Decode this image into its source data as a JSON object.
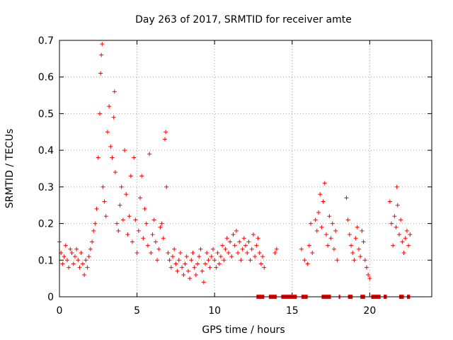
{
  "chart_data": {
    "type": "scatter",
    "title": "Day 263 of 2017, SRMTID for receiver amte",
    "xlabel": "GPS time / hours",
    "ylabel": "SRMTID / TECUs",
    "xlim": [
      0,
      24
    ],
    "ylim": [
      0,
      0.7
    ],
    "xticks": [
      0,
      5,
      10,
      15,
      20
    ],
    "yticks": [
      0,
      0.1,
      0.2,
      0.3,
      0.4,
      0.5,
      0.6,
      0.7
    ],
    "xtick_labels": [
      "0",
      "5",
      "10",
      "15",
      "20"
    ],
    "ytick_labels": [
      "0",
      "0.1",
      "0.2",
      "0.3",
      "0.4",
      "0.5",
      "0.6",
      "0.7"
    ],
    "grid": true,
    "marker": "+",
    "color": "#ff0000",
    "series": [
      {
        "name": "SRMTID",
        "points": [
          [
            0.0,
            0.15
          ],
          [
            0.1,
            0.12
          ],
          [
            0.2,
            0.09
          ],
          [
            0.3,
            0.11
          ],
          [
            0.4,
            0.14
          ],
          [
            0.5,
            0.1
          ],
          [
            0.6,
            0.08
          ],
          [
            0.7,
            0.13
          ],
          [
            0.8,
            0.12
          ],
          [
            0.9,
            0.09
          ],
          [
            1.0,
            0.11
          ],
          [
            1.1,
            0.13
          ],
          [
            1.2,
            0.1
          ],
          [
            1.3,
            0.08
          ],
          [
            1.4,
            0.12
          ],
          [
            1.5,
            0.09
          ],
          [
            1.6,
            0.06
          ],
          [
            1.7,
            0.1
          ],
          [
            1.8,
            0.08
          ],
          [
            1.9,
            0.11
          ],
          [
            2.0,
            0.13
          ],
          [
            2.1,
            0.15
          ],
          [
            2.2,
            0.18
          ],
          [
            2.3,
            0.2
          ],
          [
            2.4,
            0.24
          ],
          [
            2.5,
            0.38
          ],
          [
            2.6,
            0.5
          ],
          [
            2.65,
            0.61
          ],
          [
            2.7,
            0.66
          ],
          [
            2.75,
            0.69
          ],
          [
            2.8,
            0.3
          ],
          [
            2.9,
            0.26
          ],
          [
            3.0,
            0.22
          ],
          [
            3.1,
            0.45
          ],
          [
            3.2,
            0.52
          ],
          [
            3.3,
            0.41
          ],
          [
            3.4,
            0.38
          ],
          [
            3.5,
            0.49
          ],
          [
            3.55,
            0.56
          ],
          [
            3.6,
            0.34
          ],
          [
            3.7,
            0.2
          ],
          [
            3.8,
            0.18
          ],
          [
            3.9,
            0.25
          ],
          [
            4.0,
            0.3
          ],
          [
            4.1,
            0.21
          ],
          [
            4.2,
            0.4
          ],
          [
            4.3,
            0.28
          ],
          [
            4.4,
            0.17
          ],
          [
            4.5,
            0.22
          ],
          [
            4.6,
            0.33
          ],
          [
            4.7,
            0.15
          ],
          [
            4.8,
            0.38
          ],
          [
            4.9,
            0.21
          ],
          [
            5.0,
            0.12
          ],
          [
            5.1,
            0.18
          ],
          [
            5.2,
            0.27
          ],
          [
            5.3,
            0.33
          ],
          [
            5.4,
            0.16
          ],
          [
            5.5,
            0.24
          ],
          [
            5.6,
            0.2
          ],
          [
            5.7,
            0.14
          ],
          [
            5.8,
            0.39
          ],
          [
            5.9,
            0.12
          ],
          [
            6.0,
            0.17
          ],
          [
            6.1,
            0.21
          ],
          [
            6.2,
            0.15
          ],
          [
            6.3,
            0.1
          ],
          [
            6.4,
            0.13
          ],
          [
            6.5,
            0.19
          ],
          [
            6.6,
            0.2
          ],
          [
            6.7,
            0.16
          ],
          [
            6.8,
            0.43
          ],
          [
            6.85,
            0.45
          ],
          [
            6.9,
            0.3
          ],
          [
            7.0,
            0.12
          ],
          [
            7.1,
            0.1
          ],
          [
            7.2,
            0.08
          ],
          [
            7.3,
            0.11
          ],
          [
            7.4,
            0.13
          ],
          [
            7.5,
            0.09
          ],
          [
            7.6,
            0.07
          ],
          [
            7.7,
            0.1
          ],
          [
            7.8,
            0.12
          ],
          [
            7.9,
            0.08
          ],
          [
            8.0,
            0.06
          ],
          [
            8.1,
            0.09
          ],
          [
            8.2,
            0.11
          ],
          [
            8.3,
            0.07
          ],
          [
            8.4,
            0.05
          ],
          [
            8.5,
            0.1
          ],
          [
            8.6,
            0.12
          ],
          [
            8.7,
            0.08
          ],
          [
            8.8,
            0.06
          ],
          [
            8.9,
            0.09
          ],
          [
            9.0,
            0.11
          ],
          [
            9.1,
            0.13
          ],
          [
            9.2,
            0.07
          ],
          [
            9.3,
            0.04
          ],
          [
            9.4,
            0.09
          ],
          [
            9.5,
            0.12
          ],
          [
            9.6,
            0.1
          ],
          [
            9.7,
            0.08
          ],
          [
            9.8,
            0.11
          ],
          [
            9.9,
            0.13
          ],
          [
            10.0,
            0.1
          ],
          [
            10.1,
            0.08
          ],
          [
            10.2,
            0.12
          ],
          [
            10.3,
            0.09
          ],
          [
            10.4,
            0.11
          ],
          [
            10.5,
            0.14
          ],
          [
            10.6,
            0.1
          ],
          [
            10.7,
            0.13
          ],
          [
            10.8,
            0.16
          ],
          [
            10.9,
            0.12
          ],
          [
            11.0,
            0.15
          ],
          [
            11.1,
            0.11
          ],
          [
            11.2,
            0.17
          ],
          [
            11.3,
            0.14
          ],
          [
            11.4,
            0.18
          ],
          [
            11.5,
            0.12
          ],
          [
            11.6,
            0.15
          ],
          [
            11.7,
            0.1
          ],
          [
            11.8,
            0.13
          ],
          [
            11.9,
            0.16
          ],
          [
            12.0,
            0.14
          ],
          [
            12.1,
            0.12
          ],
          [
            12.2,
            0.15
          ],
          [
            12.3,
            0.1
          ],
          [
            12.4,
            0.13
          ],
          [
            12.5,
            0.17
          ],
          [
            12.6,
            0.11
          ],
          [
            12.7,
            0.14
          ],
          [
            12.8,
            0.16
          ],
          [
            12.9,
            0.12
          ],
          [
            13.0,
            0.09
          ],
          [
            13.1,
            0.11
          ],
          [
            13.2,
            0.08
          ],
          [
            13.9,
            0.12
          ],
          [
            14.0,
            0.13
          ],
          [
            15.6,
            0.13
          ],
          [
            15.8,
            0.1
          ],
          [
            16.0,
            0.09
          ],
          [
            16.1,
            0.14
          ],
          [
            16.2,
            0.2
          ],
          [
            16.3,
            0.12
          ],
          [
            16.5,
            0.21
          ],
          [
            16.6,
            0.18
          ],
          [
            16.7,
            0.23
          ],
          [
            16.8,
            0.28
          ],
          [
            16.9,
            0.19
          ],
          [
            17.0,
            0.26
          ],
          [
            17.1,
            0.31
          ],
          [
            17.2,
            0.17
          ],
          [
            17.3,
            0.14
          ],
          [
            17.4,
            0.22
          ],
          [
            17.5,
            0.16
          ],
          [
            17.6,
            0.2
          ],
          [
            17.7,
            0.13
          ],
          [
            17.8,
            0.18
          ],
          [
            17.9,
            0.1
          ],
          [
            18.5,
            0.27
          ],
          [
            18.6,
            0.21
          ],
          [
            18.7,
            0.17
          ],
          [
            18.8,
            0.14
          ],
          [
            18.9,
            0.12
          ],
          [
            19.0,
            0.1
          ],
          [
            19.1,
            0.16
          ],
          [
            19.2,
            0.19
          ],
          [
            19.3,
            0.13
          ],
          [
            19.4,
            0.11
          ],
          [
            19.5,
            0.18
          ],
          [
            19.6,
            0.15
          ],
          [
            19.7,
            0.1
          ],
          [
            19.8,
            0.08
          ],
          [
            19.9,
            0.06
          ],
          [
            20.0,
            0.05
          ],
          [
            21.3,
            0.26
          ],
          [
            21.4,
            0.2
          ],
          [
            21.5,
            0.14
          ],
          [
            21.6,
            0.22
          ],
          [
            21.7,
            0.19
          ],
          [
            21.75,
            0.3
          ],
          [
            21.8,
            0.25
          ],
          [
            21.9,
            0.17
          ],
          [
            22.0,
            0.21
          ],
          [
            22.1,
            0.15
          ],
          [
            22.2,
            0.12
          ],
          [
            22.3,
            0.16
          ],
          [
            22.4,
            0.18
          ],
          [
            22.5,
            0.14
          ],
          [
            22.6,
            0.17
          ]
        ]
      }
    ],
    "gaps": [
      [
        12.7,
        13.2
      ],
      [
        13.5,
        14.0
      ],
      [
        14.3,
        15.3
      ],
      [
        15.6,
        16.0
      ],
      [
        16.9,
        17.5
      ],
      [
        18.0,
        18.1
      ],
      [
        18.6,
        18.9
      ],
      [
        19.4,
        19.7
      ],
      [
        20.1,
        20.7
      ],
      [
        20.9,
        21.1
      ],
      [
        21.9,
        22.2
      ],
      [
        22.4,
        22.6
      ]
    ]
  }
}
